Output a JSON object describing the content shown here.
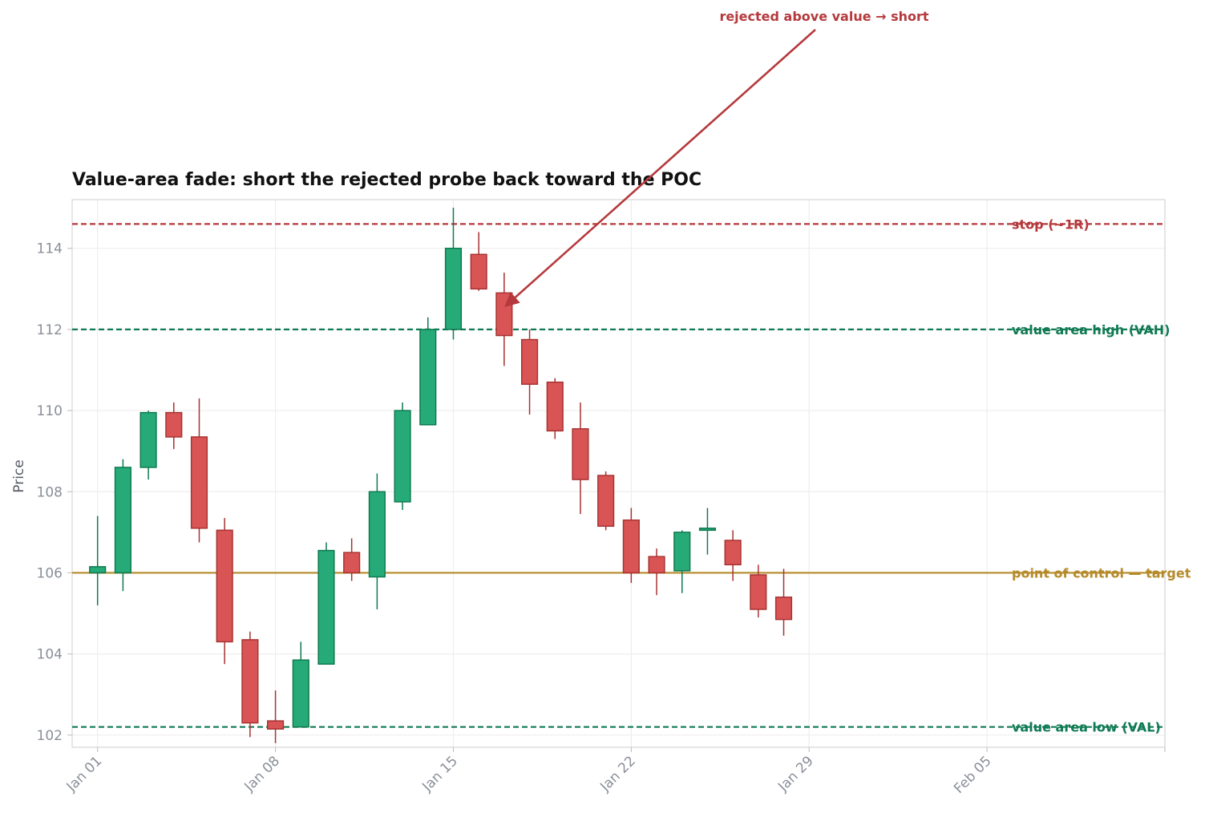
{
  "chart_data": {
    "type": "candlestick",
    "title": "Value-area fade: short the rejected probe back toward the POC",
    "ylabel": "Price",
    "xlabel": "",
    "ylim": [
      101.7,
      115.2
    ],
    "yticks": [
      102,
      104,
      106,
      108,
      110,
      112,
      114
    ],
    "xrange": [
      "2024-12-31",
      "2025-02-12"
    ],
    "xticks": [
      {
        "date": "2025-01-01",
        "label": "Jan 01"
      },
      {
        "date": "2025-01-08",
        "label": "Jan 08"
      },
      {
        "date": "2025-01-15",
        "label": "Jan 15"
      },
      {
        "date": "2025-01-22",
        "label": "Jan 22"
      },
      {
        "date": "2025-01-29",
        "label": "Jan 29"
      },
      {
        "date": "2025-02-05",
        "label": "Feb 05"
      },
      {
        "date": "2025-02-12",
        "label": ""
      }
    ],
    "grid": true,
    "colors": {
      "up": "#26ab78",
      "up_edge": "#0f7a50",
      "down": "#d95555",
      "down_edge": "#a83232"
    },
    "candles": [
      {
        "date": "2025-01-01",
        "open": 106.0,
        "high": 107.4,
        "low": 105.2,
        "close": 106.15
      },
      {
        "date": "2025-01-02",
        "open": 106.0,
        "high": 108.8,
        "low": 105.55,
        "close": 108.6
      },
      {
        "date": "2025-01-03",
        "open": 108.6,
        "high": 110.0,
        "low": 108.3,
        "close": 109.95
      },
      {
        "date": "2025-01-04",
        "open": 109.95,
        "high": 110.2,
        "low": 109.05,
        "close": 109.35
      },
      {
        "date": "2025-01-05",
        "open": 109.35,
        "high": 110.3,
        "low": 106.75,
        "close": 107.1
      },
      {
        "date": "2025-01-06",
        "open": 107.05,
        "high": 107.35,
        "low": 103.75,
        "close": 104.3
      },
      {
        "date": "2025-01-07",
        "open": 104.35,
        "high": 104.55,
        "low": 101.95,
        "close": 102.3
      },
      {
        "date": "2025-01-08",
        "open": 102.35,
        "high": 103.1,
        "low": 101.8,
        "close": 102.15
      },
      {
        "date": "2025-01-09",
        "open": 102.2,
        "high": 104.3,
        "low": 102.2,
        "close": 103.85
      },
      {
        "date": "2025-01-10",
        "open": 103.75,
        "high": 106.75,
        "low": 103.75,
        "close": 106.55
      },
      {
        "date": "2025-01-11",
        "open": 106.5,
        "high": 106.85,
        "low": 105.8,
        "close": 106.0
      },
      {
        "date": "2025-01-12",
        "open": 105.9,
        "high": 108.45,
        "low": 105.1,
        "close": 108.0
      },
      {
        "date": "2025-01-13",
        "open": 107.75,
        "high": 110.2,
        "low": 107.55,
        "close": 110.0
      },
      {
        "date": "2025-01-14",
        "open": 109.65,
        "high": 112.3,
        "low": 109.65,
        "close": 112.0
      },
      {
        "date": "2025-01-15",
        "open": 112.0,
        "high": 115.0,
        "low": 111.75,
        "close": 114.0
      },
      {
        "date": "2025-01-16",
        "open": 113.85,
        "high": 114.4,
        "low": 112.95,
        "close": 113.0
      },
      {
        "date": "2025-01-17",
        "open": 112.9,
        "high": 113.4,
        "low": 111.1,
        "close": 111.85
      },
      {
        "date": "2025-01-18",
        "open": 111.75,
        "high": 112.0,
        "low": 109.9,
        "close": 110.65
      },
      {
        "date": "2025-01-19",
        "open": 110.7,
        "high": 110.8,
        "low": 109.3,
        "close": 109.5
      },
      {
        "date": "2025-01-20",
        "open": 109.55,
        "high": 110.2,
        "low": 107.45,
        "close": 108.3
      },
      {
        "date": "2025-01-21",
        "open": 108.4,
        "high": 108.5,
        "low": 107.05,
        "close": 107.15
      },
      {
        "date": "2025-01-22",
        "open": 107.3,
        "high": 107.6,
        "low": 105.75,
        "close": 106.0
      },
      {
        "date": "2025-01-23",
        "open": 106.4,
        "high": 106.6,
        "low": 105.45,
        "close": 106.0
      },
      {
        "date": "2025-01-24",
        "open": 106.05,
        "high": 107.05,
        "low": 105.5,
        "close": 107.0
      },
      {
        "date": "2025-01-25",
        "open": 107.05,
        "high": 107.6,
        "low": 106.45,
        "close": 107.1
      },
      {
        "date": "2025-01-26",
        "open": 106.8,
        "high": 107.05,
        "low": 105.8,
        "close": 106.2
      },
      {
        "date": "2025-01-27",
        "open": 105.95,
        "high": 106.2,
        "low": 104.9,
        "close": 105.1
      },
      {
        "date": "2025-01-28",
        "open": 105.4,
        "high": 106.1,
        "low": 104.45,
        "close": 104.85
      }
    ],
    "hlines": [
      {
        "y": 114.6,
        "label": "stop (~1R)",
        "color": "#b5393c",
        "style": "dashed"
      },
      {
        "y": 112.0,
        "label": "value area high (VAH)",
        "color": "#107a54",
        "style": "dashed"
      },
      {
        "y": 106.0,
        "label": "point of control — target",
        "color": "#b58a2a",
        "style": "solid"
      },
      {
        "y": 102.2,
        "label": "value area low (VAL)",
        "color": "#107a54",
        "style": "dashed"
      }
    ],
    "annotations": [
      {
        "text": "rejected above value → short",
        "date": "2025-01-17",
        "y": 112.6,
        "color": "#b5393c"
      }
    ]
  }
}
